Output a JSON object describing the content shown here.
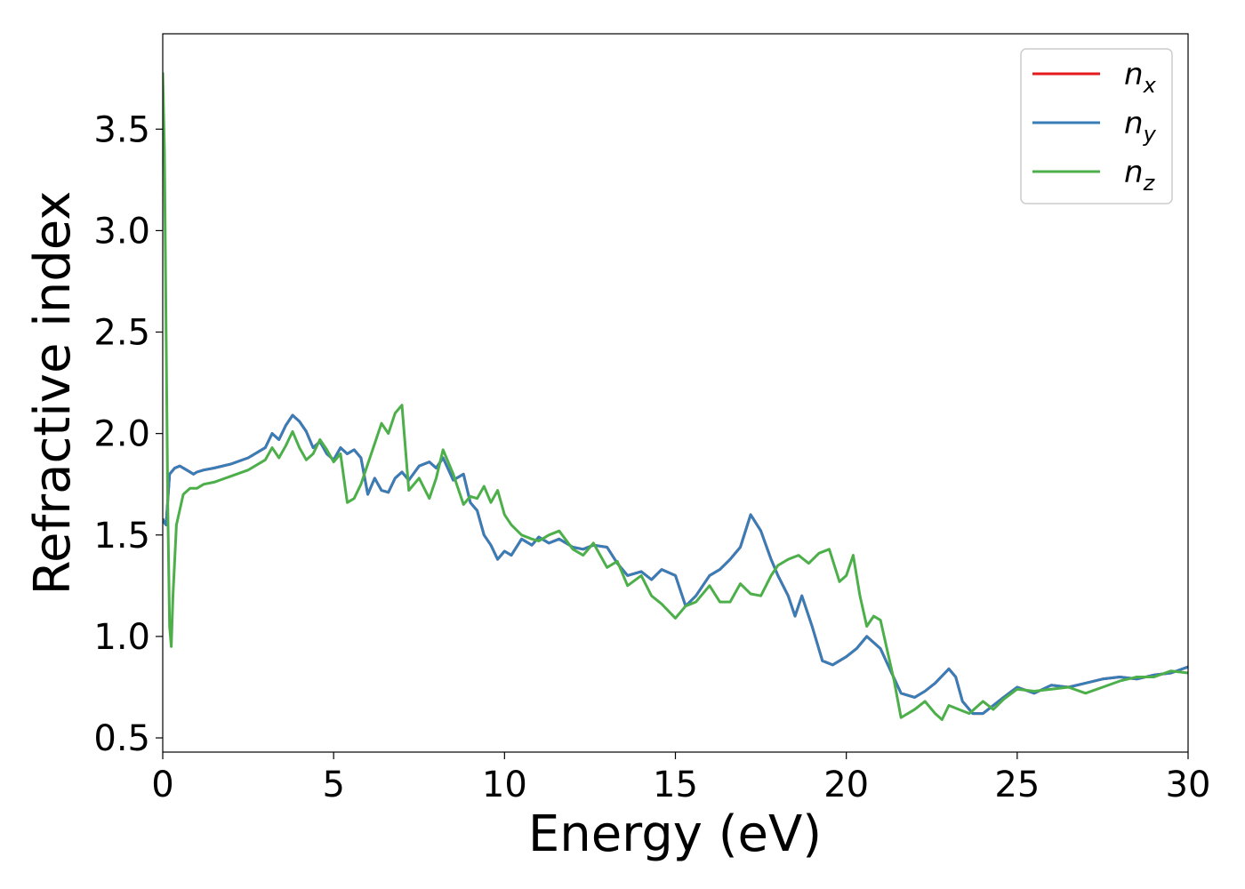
{
  "chart_data": {
    "type": "line",
    "xlabel": "Energy (eV)",
    "ylabel": "Refractive index",
    "xlim": [
      0,
      30
    ],
    "ylim": [
      0.43,
      3.97
    ],
    "xticks": [
      0,
      5,
      10,
      15,
      20,
      25,
      30
    ],
    "yticks": [
      0.5,
      1.0,
      1.5,
      2.0,
      2.5,
      3.0,
      3.5
    ],
    "grid": false,
    "legend_position": "top-right",
    "series": [
      {
        "name": "n",
        "subscript": "x",
        "color": "#e41a1c",
        "x": [
          0,
          0.05,
          0.1,
          0.2,
          0.35,
          0.5,
          0.7,
          0.9,
          1.0,
          1.2,
          1.5,
          2.0,
          2.5,
          3.0,
          3.2,
          3.4,
          3.6,
          3.8,
          4.0,
          4.2,
          4.4,
          4.6,
          4.8,
          5.0,
          5.2,
          5.4,
          5.6,
          5.8,
          6.0,
          6.2,
          6.4,
          6.6,
          6.8,
          7.0,
          7.2,
          7.5,
          7.8,
          8.0,
          8.2,
          8.5,
          8.8,
          9.0,
          9.2,
          9.4,
          9.6,
          9.8,
          10.0,
          10.2,
          10.5,
          10.8,
          11.0,
          11.3,
          11.6,
          12.0,
          12.3,
          12.6,
          13.0,
          13.3,
          13.6,
          14.0,
          14.3,
          14.6,
          15.0,
          15.3,
          15.6,
          16.0,
          16.3,
          16.6,
          16.9,
          17.2,
          17.5,
          17.8,
          18.0,
          18.3,
          18.5,
          18.7,
          19.0,
          19.3,
          19.6,
          20.0,
          20.3,
          20.6,
          21.0,
          21.3,
          21.6,
          22.0,
          22.3,
          22.6,
          23.0,
          23.2,
          23.4,
          23.7,
          24.0,
          24.3,
          24.6,
          25.0,
          25.5,
          26.0,
          26.5,
          27.0,
          27.5,
          28.0,
          28.5,
          29.0,
          29.5,
          30.0
        ],
        "y": [
          1.58,
          1.56,
          1.55,
          1.8,
          1.83,
          1.84,
          1.82,
          1.8,
          1.81,
          1.82,
          1.83,
          1.85,
          1.88,
          1.93,
          2.0,
          1.97,
          2.04,
          2.09,
          2.06,
          2.01,
          1.93,
          1.96,
          1.9,
          1.87,
          1.93,
          1.9,
          1.92,
          1.88,
          1.7,
          1.78,
          1.72,
          1.71,
          1.78,
          1.81,
          1.77,
          1.84,
          1.86,
          1.83,
          1.88,
          1.77,
          1.8,
          1.66,
          1.62,
          1.5,
          1.45,
          1.38,
          1.42,
          1.4,
          1.48,
          1.45,
          1.49,
          1.46,
          1.48,
          1.44,
          1.43,
          1.45,
          1.44,
          1.36,
          1.3,
          1.32,
          1.28,
          1.33,
          1.3,
          1.15,
          1.2,
          1.3,
          1.33,
          1.38,
          1.44,
          1.6,
          1.52,
          1.38,
          1.3,
          1.2,
          1.1,
          1.2,
          1.05,
          0.88,
          0.86,
          0.9,
          0.94,
          1.0,
          0.94,
          0.83,
          0.72,
          0.7,
          0.73,
          0.77,
          0.84,
          0.8,
          0.68,
          0.62,
          0.62,
          0.66,
          0.7,
          0.75,
          0.72,
          0.76,
          0.75,
          0.77,
          0.79,
          0.8,
          0.79,
          0.81,
          0.82,
          0.85
        ]
      },
      {
        "name": "n",
        "subscript": "y",
        "color": "#377eb8",
        "x": [
          0,
          0.05,
          0.1,
          0.2,
          0.35,
          0.5,
          0.7,
          0.9,
          1.0,
          1.2,
          1.5,
          2.0,
          2.5,
          3.0,
          3.2,
          3.4,
          3.6,
          3.8,
          4.0,
          4.2,
          4.4,
          4.6,
          4.8,
          5.0,
          5.2,
          5.4,
          5.6,
          5.8,
          6.0,
          6.2,
          6.4,
          6.6,
          6.8,
          7.0,
          7.2,
          7.5,
          7.8,
          8.0,
          8.2,
          8.5,
          8.8,
          9.0,
          9.2,
          9.4,
          9.6,
          9.8,
          10.0,
          10.2,
          10.5,
          10.8,
          11.0,
          11.3,
          11.6,
          12.0,
          12.3,
          12.6,
          13.0,
          13.3,
          13.6,
          14.0,
          14.3,
          14.6,
          15.0,
          15.3,
          15.6,
          16.0,
          16.3,
          16.6,
          16.9,
          17.2,
          17.5,
          17.8,
          18.0,
          18.3,
          18.5,
          18.7,
          19.0,
          19.3,
          19.6,
          20.0,
          20.3,
          20.6,
          21.0,
          21.3,
          21.6,
          22.0,
          22.3,
          22.6,
          23.0,
          23.2,
          23.4,
          23.7,
          24.0,
          24.3,
          24.6,
          25.0,
          25.5,
          26.0,
          26.5,
          27.0,
          27.5,
          28.0,
          28.5,
          29.0,
          29.5,
          30.0
        ],
        "y": [
          1.58,
          1.56,
          1.55,
          1.8,
          1.83,
          1.84,
          1.82,
          1.8,
          1.81,
          1.82,
          1.83,
          1.85,
          1.88,
          1.93,
          2.0,
          1.97,
          2.04,
          2.09,
          2.06,
          2.01,
          1.93,
          1.96,
          1.9,
          1.87,
          1.93,
          1.9,
          1.92,
          1.88,
          1.7,
          1.78,
          1.72,
          1.71,
          1.78,
          1.81,
          1.77,
          1.84,
          1.86,
          1.83,
          1.88,
          1.77,
          1.8,
          1.66,
          1.62,
          1.5,
          1.45,
          1.38,
          1.42,
          1.4,
          1.48,
          1.45,
          1.49,
          1.46,
          1.48,
          1.44,
          1.43,
          1.45,
          1.44,
          1.36,
          1.3,
          1.32,
          1.28,
          1.33,
          1.3,
          1.15,
          1.2,
          1.3,
          1.33,
          1.38,
          1.44,
          1.6,
          1.52,
          1.38,
          1.3,
          1.2,
          1.1,
          1.2,
          1.05,
          0.88,
          0.86,
          0.9,
          0.94,
          1.0,
          0.94,
          0.83,
          0.72,
          0.7,
          0.73,
          0.77,
          0.84,
          0.8,
          0.68,
          0.62,
          0.62,
          0.66,
          0.7,
          0.75,
          0.72,
          0.76,
          0.75,
          0.77,
          0.79,
          0.8,
          0.79,
          0.81,
          0.82,
          0.85
        ]
      },
      {
        "name": "n",
        "subscript": "z",
        "color": "#4daf4a",
        "x": [
          0,
          0.05,
          0.1,
          0.15,
          0.2,
          0.25,
          0.3,
          0.4,
          0.6,
          0.8,
          1.0,
          1.2,
          1.5,
          2.0,
          2.5,
          3.0,
          3.2,
          3.4,
          3.6,
          3.8,
          4.0,
          4.2,
          4.4,
          4.6,
          4.8,
          5.0,
          5.2,
          5.4,
          5.6,
          5.8,
          6.0,
          6.2,
          6.4,
          6.6,
          6.8,
          7.0,
          7.2,
          7.5,
          7.8,
          8.0,
          8.2,
          8.5,
          8.8,
          9.0,
          9.2,
          9.4,
          9.6,
          9.8,
          10.0,
          10.2,
          10.5,
          10.8,
          11.0,
          11.3,
          11.6,
          12.0,
          12.3,
          12.6,
          13.0,
          13.3,
          13.6,
          14.0,
          14.3,
          14.6,
          15.0,
          15.3,
          15.6,
          16.0,
          16.3,
          16.6,
          16.9,
          17.2,
          17.5,
          17.8,
          18.0,
          18.3,
          18.6,
          18.9,
          19.2,
          19.5,
          19.8,
          20.0,
          20.2,
          20.4,
          20.6,
          20.8,
          21.0,
          21.2,
          21.4,
          21.6,
          22.0,
          22.3,
          22.6,
          22.8,
          23.0,
          23.3,
          23.6,
          24.0,
          24.3,
          24.6,
          25.0,
          25.5,
          26.0,
          26.5,
          27.0,
          27.5,
          28.0,
          28.5,
          29.0,
          29.5,
          30.0
        ],
        "y": [
          3.78,
          3.4,
          2.5,
          1.6,
          1.05,
          0.95,
          1.2,
          1.55,
          1.7,
          1.73,
          1.73,
          1.75,
          1.76,
          1.79,
          1.82,
          1.87,
          1.93,
          1.88,
          1.94,
          2.01,
          1.93,
          1.87,
          1.9,
          1.97,
          1.92,
          1.86,
          1.9,
          1.66,
          1.68,
          1.75,
          1.85,
          1.95,
          2.05,
          2.0,
          2.1,
          2.14,
          1.72,
          1.78,
          1.68,
          1.78,
          1.92,
          1.8,
          1.65,
          1.69,
          1.68,
          1.74,
          1.66,
          1.72,
          1.6,
          1.55,
          1.5,
          1.48,
          1.47,
          1.5,
          1.52,
          1.43,
          1.4,
          1.46,
          1.34,
          1.37,
          1.25,
          1.3,
          1.2,
          1.16,
          1.09,
          1.15,
          1.17,
          1.25,
          1.17,
          1.17,
          1.26,
          1.21,
          1.2,
          1.3,
          1.35,
          1.38,
          1.4,
          1.36,
          1.41,
          1.43,
          1.27,
          1.3,
          1.4,
          1.2,
          1.05,
          1.1,
          1.08,
          0.93,
          0.78,
          0.6,
          0.64,
          0.68,
          0.62,
          0.59,
          0.66,
          0.64,
          0.62,
          0.68,
          0.64,
          0.69,
          0.74,
          0.73,
          0.74,
          0.75,
          0.72,
          0.75,
          0.78,
          0.8,
          0.8,
          0.83,
          0.82
        ]
      }
    ]
  }
}
